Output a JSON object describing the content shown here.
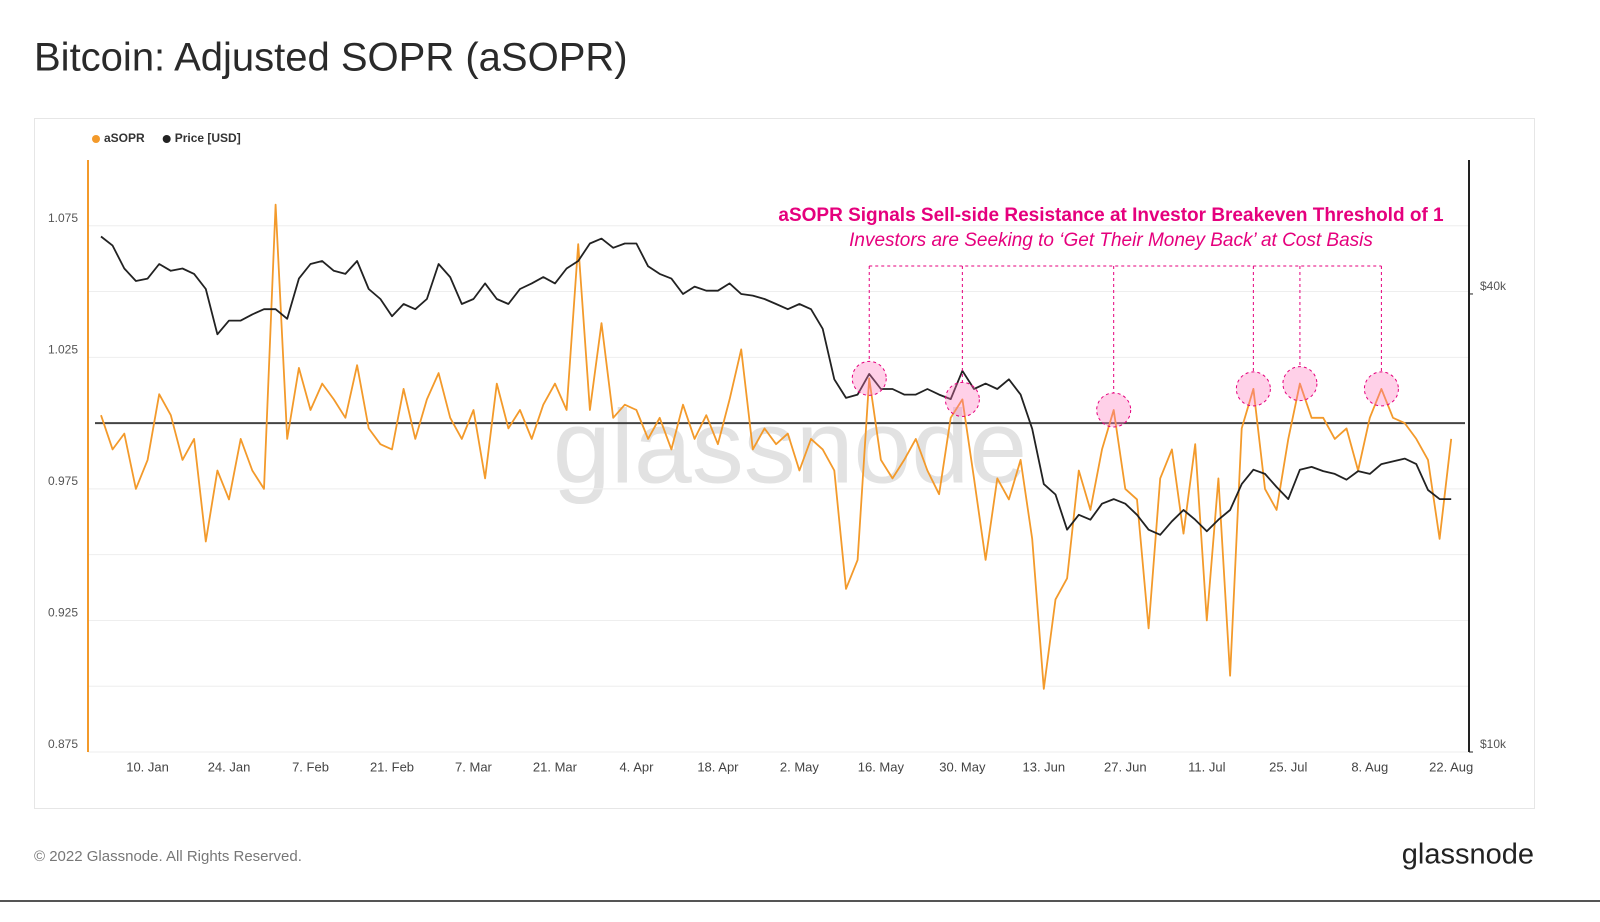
{
  "chart_data": {
    "type": "line",
    "title": "Bitcoin: Adjusted SOPR (aSOPR)",
    "categories": [
      null,
      null,
      null,
      null,
      "10. Jan",
      null,
      null,
      null,
      null,
      null,
      null,
      "24. Jan",
      null,
      null,
      null,
      null,
      null,
      null,
      "7. Feb",
      null,
      null,
      null,
      null,
      null,
      null,
      "21. Feb",
      null,
      null,
      null,
      null,
      null,
      null,
      "7. Mar",
      null,
      null,
      null,
      null,
      null,
      null,
      "21. Mar",
      null,
      null,
      null,
      null,
      null,
      null,
      "4. Apr",
      null,
      null,
      null,
      null,
      null,
      null,
      "18. Apr",
      null,
      null,
      null,
      null,
      null,
      null,
      "2. May",
      null,
      null,
      null,
      null,
      null,
      null,
      "16. May",
      null,
      null,
      null,
      null,
      null,
      null,
      "30. May",
      null,
      null,
      null,
      null,
      null,
      null,
      "13. Jun",
      null,
      null,
      null,
      null,
      null,
      null,
      "27. Jun",
      null,
      null,
      null,
      null,
      null,
      null,
      "11. Jul",
      null,
      null,
      null,
      null,
      null,
      null,
      "25. Jul",
      null,
      null,
      null,
      null,
      null,
      null,
      "8. Aug",
      null,
      null,
      null,
      null,
      null,
      null,
      "22. Aug"
    ],
    "series": [
      {
        "name": "aSOPR",
        "color": "#f39a2b",
        "axis": "y",
        "values": [
          1.003,
          0.99,
          0.996,
          0.975,
          0.986,
          1.011,
          1.003,
          0.986,
          0.994,
          0.955,
          0.982,
          0.971,
          0.994,
          0.982,
          0.975,
          1.083,
          0.994,
          1.021,
          1.005,
          1.015,
          1.009,
          1.002,
          1.022,
          0.998,
          0.992,
          0.99,
          1.013,
          0.994,
          1.009,
          1.019,
          1.002,
          0.994,
          1.005,
          0.979,
          1.015,
          0.998,
          1.005,
          0.994,
          1.007,
          1.015,
          1.005,
          1.068,
          1.005,
          1.038,
          1.002,
          1.007,
          1.005,
          0.994,
          1.002,
          0.99,
          1.007,
          0.994,
          1.003,
          0.992,
          1.009,
          1.028,
          0.99,
          0.998,
          0.992,
          0.996,
          0.982,
          0.994,
          0.99,
          0.982,
          0.937,
          0.948,
          1.017,
          0.986,
          0.979,
          0.986,
          0.994,
          0.982,
          0.973,
          1.002,
          1.009,
          0.979,
          0.948,
          0.979,
          0.971,
          0.986,
          0.956,
          0.899,
          0.933,
          0.941,
          0.982,
          0.967,
          0.99,
          1.005,
          0.975,
          0.971,
          0.922,
          0.979,
          0.99,
          0.958,
          0.992,
          0.925,
          0.979,
          0.904,
          0.998,
          1.013,
          0.975,
          0.967,
          0.994,
          1.015,
          1.002,
          1.002,
          0.994,
          0.998,
          0.982,
          1.002,
          1.013,
          1.002,
          1.0,
          0.994,
          0.986,
          0.956,
          0.994
        ]
      },
      {
        "name": "Price [USD]",
        "color": "#222222",
        "axis": "y2",
        "values": [
          47600,
          46300,
          43200,
          41600,
          41900,
          43800,
          42900,
          43200,
          42500,
          40600,
          35400,
          36900,
          36900,
          37600,
          38200,
          38200,
          37100,
          41900,
          43800,
          44200,
          42900,
          42500,
          44200,
          40600,
          39400,
          37400,
          38800,
          38200,
          39400,
          43800,
          42100,
          38800,
          39400,
          41300,
          39400,
          38800,
          40600,
          41300,
          42100,
          41300,
          43200,
          44200,
          46600,
          47300,
          46000,
          46600,
          46600,
          43500,
          42500,
          41900,
          40000,
          40900,
          40400,
          40400,
          41300,
          40000,
          39800,
          39400,
          38800,
          38200,
          38800,
          38200,
          36000,
          30900,
          29200,
          29500,
          31400,
          30000,
          30000,
          29500,
          29500,
          30000,
          29500,
          29100,
          31700,
          30000,
          30500,
          30000,
          30900,
          29500,
          26600,
          22500,
          21800,
          19600,
          20500,
          20200,
          21200,
          21500,
          21200,
          20500,
          19600,
          19300,
          20100,
          20800,
          20200,
          19500,
          20200,
          20800,
          22500,
          23500,
          23200,
          22300,
          21500,
          23500,
          23700,
          23400,
          23200,
          22800,
          23400,
          23200,
          23900,
          24100,
          24300,
          23900,
          22100,
          21500,
          21500
        ]
      }
    ],
    "ylim": [
      0.875,
      1.1
    ],
    "yticks": [
      0.875,
      0.925,
      0.975,
      1.025,
      1.075
    ],
    "minor_yticks": [
      0.9,
      0.95,
      1.0,
      1.05
    ],
    "y2lim": [
      10000,
      60000
    ],
    "y2ticks": [
      {
        "value": 10000,
        "label": "$10k"
      },
      {
        "value": 40000,
        "label": "$40k"
      }
    ],
    "y2log": true,
    "grid": true,
    "legend": "top-left",
    "reference_line": 1,
    "annotation": {
      "title": "aSOPR Signals Sell-side Resistance at Investor Breakeven Threshold of 1",
      "subtitle": "Investors are Seeking to ‘Get Their Money Back’ at Cost Basis",
      "color": "#e5007d",
      "highlight_indices": [
        66,
        74,
        87,
        99,
        103,
        110
      ]
    },
    "watermark": "glassnode",
    "footer": "© 2022 Glassnode. All Rights Reserved.",
    "logo": "glassnode"
  }
}
